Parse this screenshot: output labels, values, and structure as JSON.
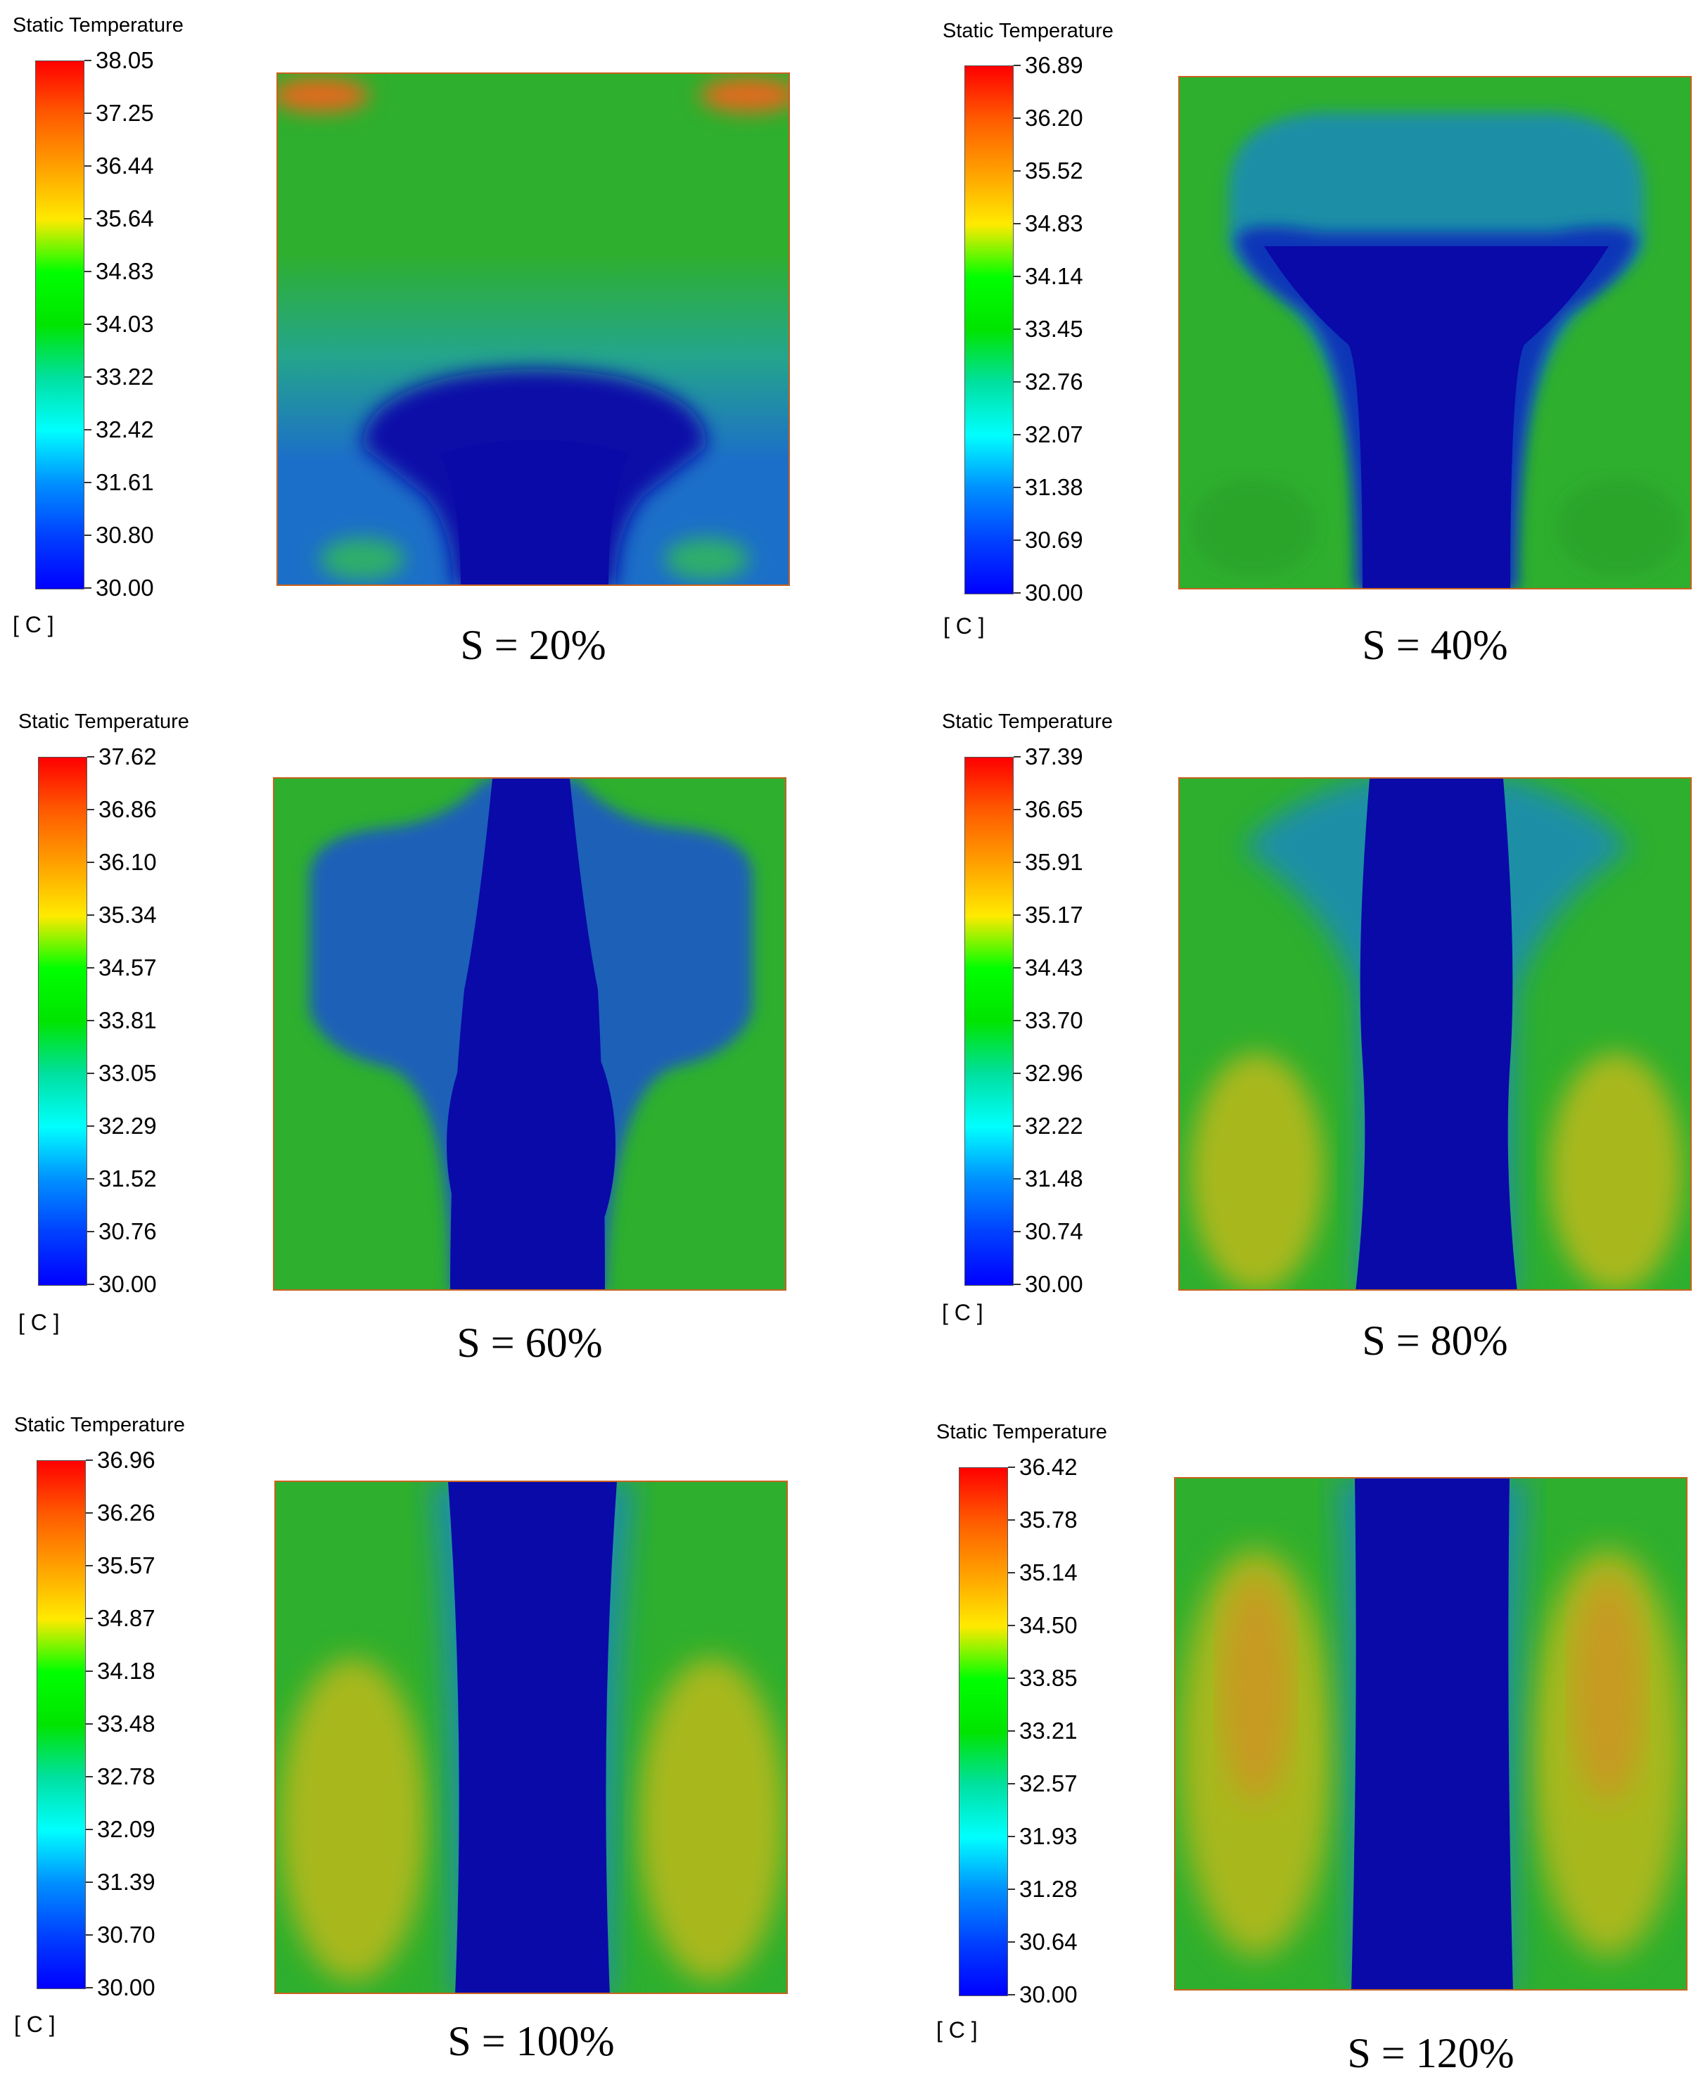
{
  "panels": [
    {
      "legend_title": "Static Temperature",
      "unit": "[ C ]",
      "caption": "S = 20%",
      "ticks": [
        "38.05",
        "37.25",
        "36.44",
        "35.64",
        "34.83",
        "34.03",
        "33.22",
        "32.42",
        "31.61",
        "30.80",
        "30.00"
      ]
    },
    {
      "legend_title": "Static Temperature",
      "unit": "[ C ]",
      "caption": "S = 40%",
      "ticks": [
        "36.89",
        "36.20",
        "35.52",
        "34.83",
        "34.14",
        "33.45",
        "32.76",
        "32.07",
        "31.38",
        "30.69",
        "30.00"
      ]
    },
    {
      "legend_title": "Static Temperature",
      "unit": "[ C ]",
      "caption": "S = 60%",
      "ticks": [
        "37.62",
        "36.86",
        "36.10",
        "35.34",
        "34.57",
        "33.81",
        "33.05",
        "32.29",
        "31.52",
        "30.76",
        "30.00"
      ]
    },
    {
      "legend_title": "Static Temperature",
      "unit": "[ C ]",
      "caption": "S = 80%",
      "ticks": [
        "37.39",
        "36.65",
        "35.91",
        "35.17",
        "34.43",
        "33.70",
        "32.96",
        "32.22",
        "31.48",
        "30.74",
        "30.00"
      ]
    },
    {
      "legend_title": "Static Temperature",
      "unit": "[ C ]",
      "caption": "S = 100%",
      "ticks": [
        "36.96",
        "36.26",
        "35.57",
        "34.87",
        "34.18",
        "33.48",
        "32.78",
        "32.09",
        "31.39",
        "30.70",
        "30.00"
      ]
    },
    {
      "legend_title": "Static Temperature",
      "unit": "[ C ]",
      "caption": "S = 120%",
      "ticks": [
        "36.42",
        "35.78",
        "35.14",
        "34.50",
        "33.85",
        "33.21",
        "32.57",
        "31.93",
        "31.28",
        "30.64",
        "30.00"
      ]
    }
  ],
  "colors": {
    "cold": "#0a0aa8",
    "mid": "#2eb82e",
    "warm": "#a8b81e",
    "hot": "#e03010"
  }
}
